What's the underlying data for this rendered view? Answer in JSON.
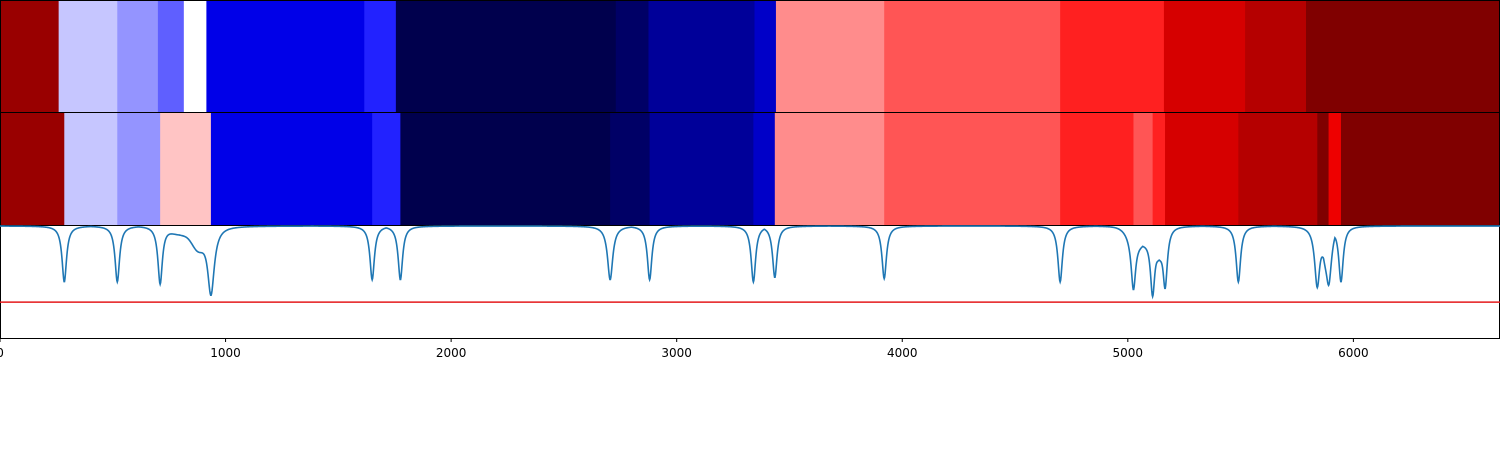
{
  "chart_data": {
    "type": "heatmap",
    "title": "",
    "xlabel": "",
    "ylabel": "",
    "xlim": [
      0,
      6650
    ],
    "x_ticks": [
      0,
      1000,
      2000,
      3000,
      4000,
      5000,
      6000
    ],
    "grid": false,
    "legend": "none",
    "colormap": "seismic",
    "rows": [
      {
        "segments": [
          {
            "start": 0,
            "end": 260,
            "color": "#990000"
          },
          {
            "start": 260,
            "end": 520,
            "color": "#c6c6ff"
          },
          {
            "start": 520,
            "end": 700,
            "color": "#9494ff"
          },
          {
            "start": 700,
            "end": 815,
            "color": "#5f5fff"
          },
          {
            "start": 815,
            "end": 915,
            "color": "#ffffff"
          },
          {
            "start": 915,
            "end": 1615,
            "color": "#0000e8"
          },
          {
            "start": 1615,
            "end": 1755,
            "color": "#2222ff"
          },
          {
            "start": 1755,
            "end": 2730,
            "color": "#00004d"
          },
          {
            "start": 2730,
            "end": 2875,
            "color": "#000066"
          },
          {
            "start": 2875,
            "end": 3345,
            "color": "#000099"
          },
          {
            "start": 3345,
            "end": 3440,
            "color": "#0000c8"
          },
          {
            "start": 3440,
            "end": 3920,
            "color": "#ff8c8c"
          },
          {
            "start": 3920,
            "end": 4700,
            "color": "#ff5555"
          },
          {
            "start": 4700,
            "end": 5160,
            "color": "#ff2020"
          },
          {
            "start": 5160,
            "end": 5520,
            "color": "#d60000"
          },
          {
            "start": 5520,
            "end": 5790,
            "color": "#b50000"
          },
          {
            "start": 5790,
            "end": 6650,
            "color": "#800000"
          }
        ]
      },
      {
        "segments": [
          {
            "start": 0,
            "end": 285,
            "color": "#990000"
          },
          {
            "start": 285,
            "end": 520,
            "color": "#c6c6ff"
          },
          {
            "start": 520,
            "end": 710,
            "color": "#9494ff"
          },
          {
            "start": 710,
            "end": 935,
            "color": "#ffc4c4"
          },
          {
            "start": 935,
            "end": 1650,
            "color": "#0000e8"
          },
          {
            "start": 1650,
            "end": 1775,
            "color": "#2222ff"
          },
          {
            "start": 1775,
            "end": 2705,
            "color": "#00004d"
          },
          {
            "start": 2705,
            "end": 2880,
            "color": "#000066"
          },
          {
            "start": 2880,
            "end": 3340,
            "color": "#000099"
          },
          {
            "start": 3340,
            "end": 3435,
            "color": "#0000c8"
          },
          {
            "start": 3435,
            "end": 3920,
            "color": "#ff8c8c"
          },
          {
            "start": 3920,
            "end": 4700,
            "color": "#ff5555"
          },
          {
            "start": 4700,
            "end": 5025,
            "color": "#ff2020"
          },
          {
            "start": 5025,
            "end": 5110,
            "color": "#ff5555"
          },
          {
            "start": 5110,
            "end": 5165,
            "color": "#ff2020"
          },
          {
            "start": 5165,
            "end": 5490,
            "color": "#d60000"
          },
          {
            "start": 5490,
            "end": 5840,
            "color": "#b50000"
          },
          {
            "start": 5840,
            "end": 5890,
            "color": "#800000"
          },
          {
            "start": 5890,
            "end": 5945,
            "color": "#ee0000"
          },
          {
            "start": 5945,
            "end": 6650,
            "color": "#800000"
          }
        ]
      }
    ],
    "line_panel": {
      "line_color": "#1f77b4",
      "threshold_color": "#e41a1c",
      "ylim": [
        0,
        1
      ],
      "baseline": 1.0,
      "threshold": 0.32,
      "dips": [
        {
          "x": 285,
          "y": 0.5,
          "w": 12
        },
        {
          "x": 520,
          "y": 0.5,
          "w": 12
        },
        {
          "x": 710,
          "y": 0.48,
          "w": 12
        },
        {
          "x": 935,
          "y": 0.38,
          "w": 18
        },
        {
          "x": 1650,
          "y": 0.52,
          "w": 12
        },
        {
          "x": 1775,
          "y": 0.52,
          "w": 12
        },
        {
          "x": 2705,
          "y": 0.52,
          "w": 14
        },
        {
          "x": 2880,
          "y": 0.52,
          "w": 12
        },
        {
          "x": 3340,
          "y": 0.5,
          "w": 12
        },
        {
          "x": 3435,
          "y": 0.54,
          "w": 12
        },
        {
          "x": 3920,
          "y": 0.53,
          "w": 12
        },
        {
          "x": 4700,
          "y": 0.5,
          "w": 12
        },
        {
          "x": 5025,
          "y": 0.43,
          "w": 12
        },
        {
          "x": 5110,
          "y": 0.37,
          "w": 12
        },
        {
          "x": 5165,
          "y": 0.44,
          "w": 12
        },
        {
          "x": 5490,
          "y": 0.5,
          "w": 12
        },
        {
          "x": 5840,
          "y": 0.45,
          "w": 14
        },
        {
          "x": 5890,
          "y": 0.47,
          "w": 12
        },
        {
          "x": 5945,
          "y": 0.5,
          "w": 12
        }
      ],
      "humps": [
        {
          "x": 800,
          "y": 0.93,
          "w": 60
        },
        {
          "x": 880,
          "y": 0.82,
          "w": 40
        },
        {
          "x": 5060,
          "y": 0.85,
          "w": 60
        },
        {
          "x": 5140,
          "y": 0.78,
          "w": 20
        },
        {
          "x": 5880,
          "y": 0.72,
          "w": 25
        }
      ]
    }
  }
}
